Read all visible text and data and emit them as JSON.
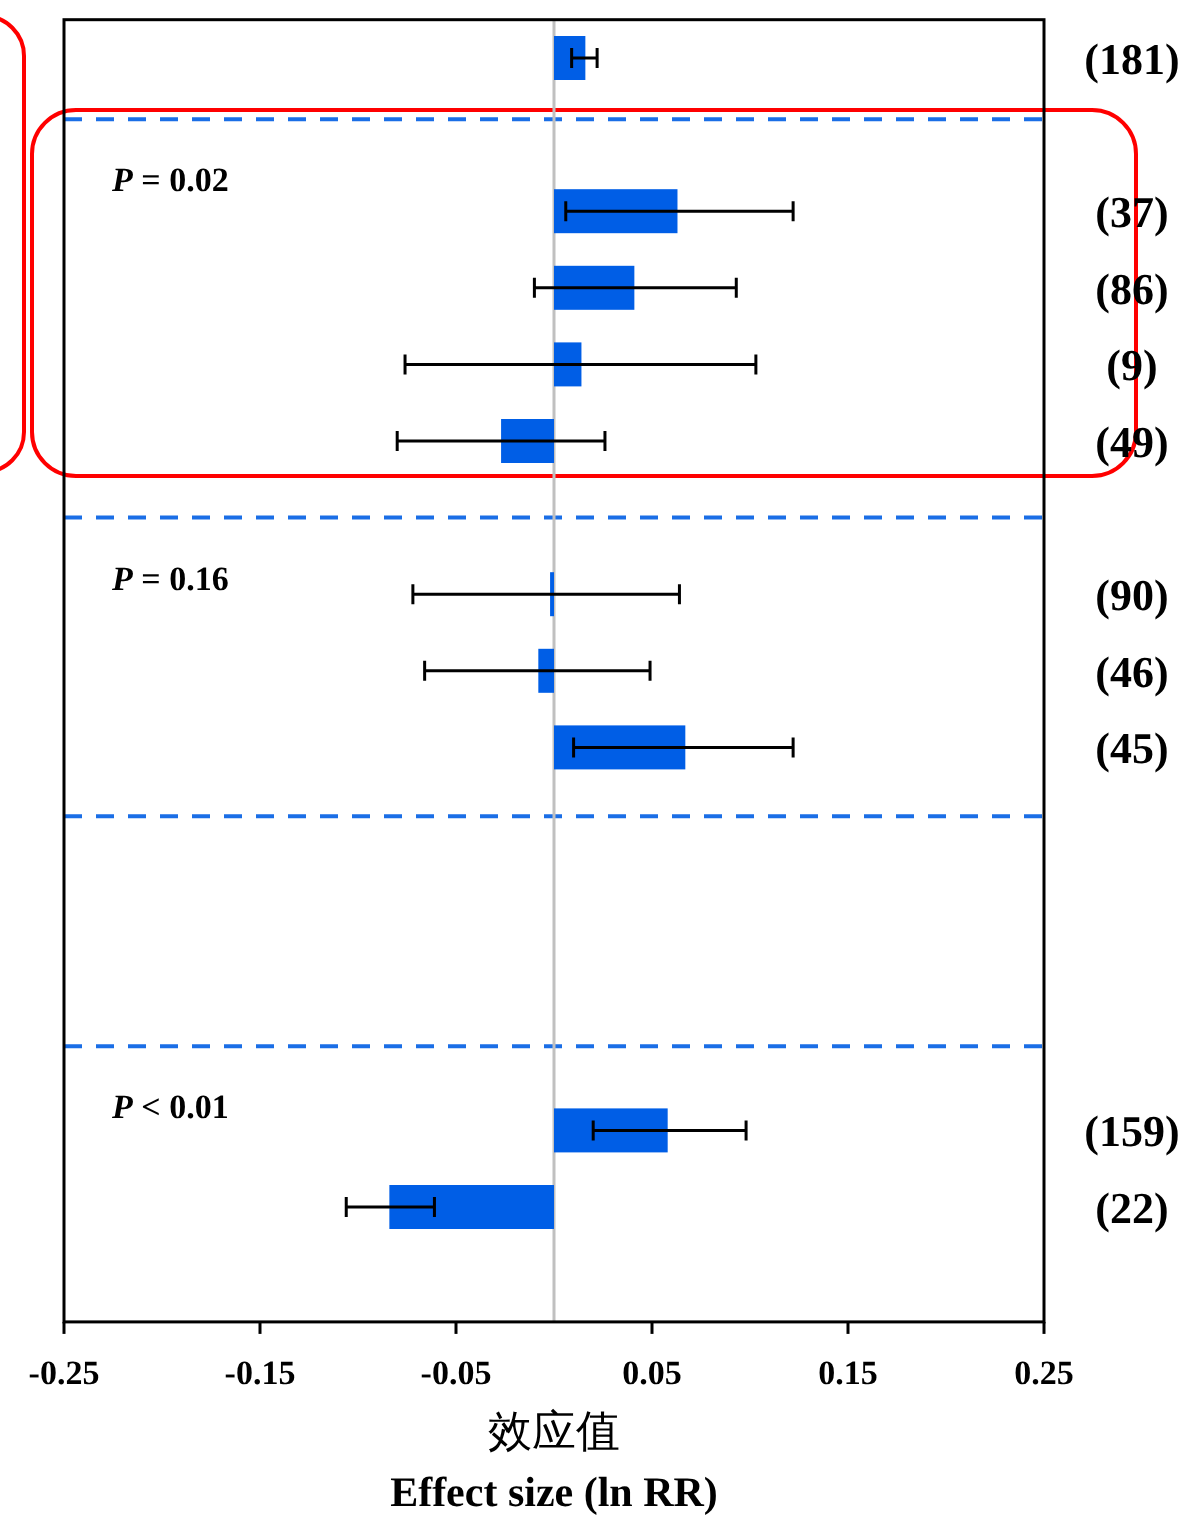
{
  "chart_data": {
    "type": "bar",
    "orientation": "horizontal",
    "color": "#005ee6",
    "categories": [
      "(181)",
      null,
      "(37)",
      "(86)",
      "(9)",
      "(49)",
      null,
      "(90)",
      "(46)",
      "(45)",
      null,
      null,
      null,
      null,
      "(159)",
      "(22)",
      null
    ],
    "values": [
      0.016,
      null,
      0.063,
      0.041,
      0.014,
      -0.027,
      null,
      -0.002,
      -0.008,
      0.067,
      null,
      null,
      null,
      null,
      0.058,
      -0.084,
      null
    ],
    "errors": [
      [
        0.009,
        0.022
      ],
      null,
      [
        0.006,
        0.122
      ],
      [
        -0.01,
        0.093
      ],
      [
        -0.076,
        0.103
      ],
      [
        -0.08,
        0.026
      ],
      null,
      [
        -0.072,
        0.064
      ],
      [
        -0.066,
        0.049
      ],
      [
        0.01,
        0.122
      ],
      null,
      null,
      null,
      null,
      [
        0.02,
        0.098
      ],
      [
        -0.106,
        -0.061
      ],
      null
    ],
    "xlim": [
      -0.25,
      0.25
    ],
    "xticks": [
      -0.25,
      -0.15,
      -0.05,
      0.05,
      0.15,
      0.25
    ],
    "xlabel": "效应值\nEffect size (ln RR)",
    "ref_lines": [
      {
        "axis": "x",
        "value": 0,
        "color": "#c0c0c0",
        "line_style": "solid"
      }
    ],
    "annotations": [
      "*P* = 0.02",
      "*P* = 0.16",
      "*P* < 0.01"
    ]
  }
}
